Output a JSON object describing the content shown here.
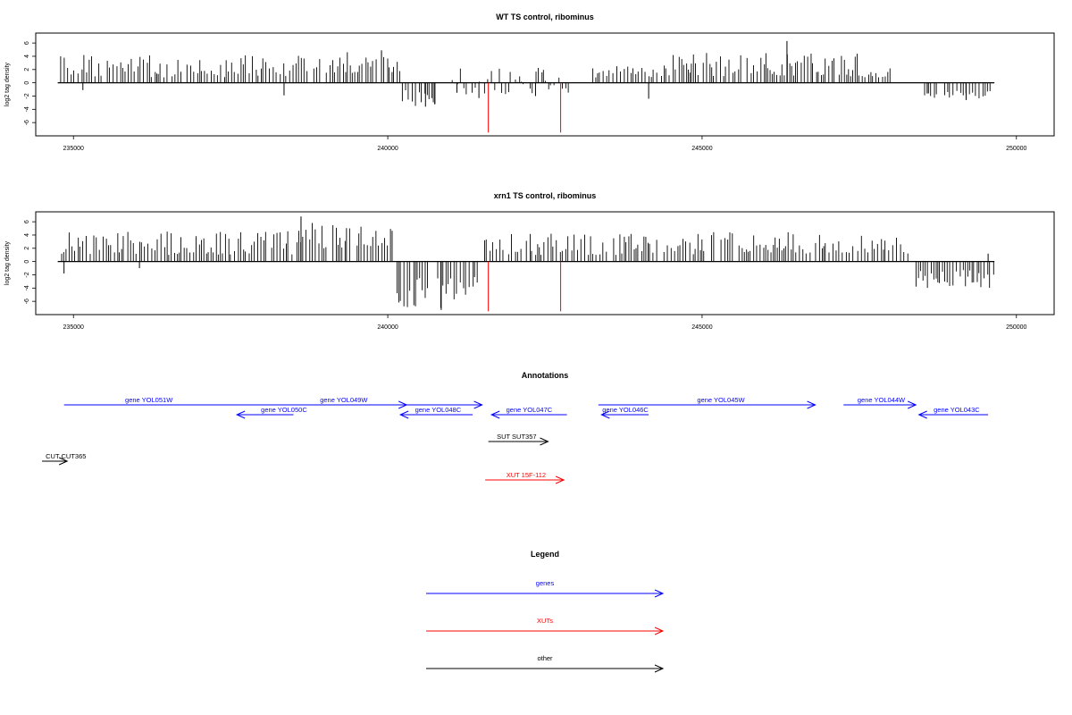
{
  "chart_data": [
    {
      "type": "bar",
      "title": "WT TS control, ribominus",
      "xlabel": "",
      "ylabel": "log2 tag density",
      "xlim": [
        234400,
        250600
      ],
      "ylim": [
        -8,
        7.5
      ],
      "xticks": [
        235000,
        240000,
        245000,
        250000
      ],
      "yticks": [
        6,
        4,
        2,
        0,
        -2,
        -4,
        -6
      ],
      "bar_color": "#000000",
      "marker_color": "#ff0000",
      "markers": [
        {
          "x": 241600,
          "y": -7.5
        },
        {
          "x": 242750,
          "y": -7.5
        }
      ],
      "regions": [
        {
          "from": 234750,
          "to": 238400,
          "min": 0.8,
          "max": 4.2,
          "seed": 1
        },
        {
          "from": 238400,
          "to": 240200,
          "min": 1.5,
          "max": 5.0,
          "seed": 2
        },
        {
          "from": 240200,
          "to": 240800,
          "min": -3.5,
          "max": -1.0,
          "seed": 3
        },
        {
          "from": 241000,
          "to": 242900,
          "min": -1.8,
          "max": 2.5,
          "seed": 4
        },
        {
          "from": 243200,
          "to": 244300,
          "min": 0.8,
          "max": 2.6,
          "seed": 5
        },
        {
          "from": 244300,
          "to": 247500,
          "min": 1.0,
          "max": 4.5,
          "seed": 6
        },
        {
          "from": 247500,
          "to": 248000,
          "min": 0.8,
          "max": 2.2,
          "seed": 7
        },
        {
          "from": 248500,
          "to": 249600,
          "min": -2.5,
          "max": -0.8,
          "seed": 8
        }
      ],
      "bars": [
        {
          "x": 235150,
          "y": -1.1
        },
        {
          "x": 238350,
          "y": -1.9
        },
        {
          "x": 240600,
          "y": -3.6
        },
        {
          "x": 240750,
          "y": -3.2
        },
        {
          "x": 241100,
          "y": -1.5
        },
        {
          "x": 241450,
          "y": -2.3
        },
        {
          "x": 242350,
          "y": -2.0
        },
        {
          "x": 244150,
          "y": -2.4
        },
        {
          "x": 246350,
          "y": 6.3
        },
        {
          "x": 239900,
          "y": 4.9
        },
        {
          "x": 249200,
          "y": -2.6
        },
        {
          "x": 248600,
          "y": -1.6
        }
      ]
    },
    {
      "type": "bar",
      "title": "xrn1 TS control, ribominus",
      "xlabel": "",
      "ylabel": "log2 tag density",
      "xlim": [
        234400,
        250600
      ],
      "ylim": [
        -8,
        7.5
      ],
      "xticks": [
        235000,
        240000,
        245000,
        250000
      ],
      "yticks": [
        6,
        4,
        2,
        0,
        -2,
        -4,
        -6
      ],
      "bar_color": "#000000",
      "marker_color": "#ff0000",
      "markers": [
        {
          "x": 241600,
          "y": -7.5
        },
        {
          "x": 242750,
          "y": -7.5
        }
      ],
      "regions": [
        {
          "from": 234750,
          "to": 238500,
          "min": 1.0,
          "max": 4.6,
          "seed": 11
        },
        {
          "from": 238500,
          "to": 240100,
          "min": 2.0,
          "max": 6.0,
          "seed": 12
        },
        {
          "from": 240100,
          "to": 241450,
          "min": -7.0,
          "max": -2.0,
          "seed": 13
        },
        {
          "from": 241500,
          "to": 243100,
          "min": 1.0,
          "max": 4.2,
          "seed": 14
        },
        {
          "from": 243100,
          "to": 245000,
          "min": 1.0,
          "max": 4.2,
          "seed": 15
        },
        {
          "from": 245000,
          "to": 248300,
          "min": 1.2,
          "max": 4.8,
          "seed": 16
        },
        {
          "from": 248300,
          "to": 249650,
          "min": -4.0,
          "max": -1.2,
          "seed": 17
        }
      ],
      "bars": [
        {
          "x": 234850,
          "y": -1.8
        },
        {
          "x": 236050,
          "y": -1.0
        },
        {
          "x": 240850,
          "y": -7.3
        },
        {
          "x": 238620,
          "y": 6.8
        },
        {
          "x": 249550,
          "y": 1.2
        }
      ]
    }
  ],
  "annotations": {
    "title": "Annotations",
    "items": [
      {
        "label": "gene YOL051W",
        "from": 234850,
        "to": 241500,
        "row": 0,
        "color": "#0000ff",
        "dir": "right",
        "text_x": 236200
      },
      {
        "label": "gene YOL050C",
        "from": 237600,
        "to": 238500,
        "row": 1,
        "color": "#0000ff",
        "dir": "left",
        "text_x": 238350
      },
      {
        "label": "gene YOL049W",
        "from": 238500,
        "to": 240300,
        "row": 0,
        "color": "#0000ff",
        "dir": "right",
        "text_x": 239300
      },
      {
        "label": "gene YOL048C",
        "from": 240200,
        "to": 241350,
        "row": 1,
        "color": "#0000ff",
        "dir": "left",
        "text_x": 240800
      },
      {
        "label": "gene YOL047C",
        "from": 241650,
        "to": 242850,
        "row": 1,
        "color": "#0000ff",
        "dir": "left",
        "text_x": 242250
      },
      {
        "label": "gene YOL046C",
        "from": 243400,
        "to": 244150,
        "row": 1,
        "color": "#0000ff",
        "dir": "left",
        "text_x": 243780
      },
      {
        "label": "gene YOL045W",
        "from": 243350,
        "to": 246800,
        "row": 0,
        "color": "#0000ff",
        "dir": "right",
        "text_x": 245300
      },
      {
        "label": "gene YOL044W",
        "from": 247250,
        "to": 248400,
        "row": 0,
        "color": "#0000ff",
        "dir": "right",
        "text_x": 247850
      },
      {
        "label": "gene YOL043C",
        "from": 248450,
        "to": 249550,
        "row": 1,
        "color": "#0000ff",
        "dir": "left",
        "text_x": 249050
      },
      {
        "label": "SUT SUT357",
        "from": 241600,
        "to": 242550,
        "row": 2,
        "color": "#000000",
        "dir": "right",
        "text_x": 242050
      },
      {
        "label": "CUT CUT365",
        "from": 234500,
        "to": 234900,
        "row": 3,
        "color": "#000000",
        "dir": "right",
        "text_x": 234880
      },
      {
        "label": "XUT 15F-112",
        "from": 241550,
        "to": 242800,
        "row": 4,
        "color": "#ff0000",
        "dir": "right",
        "text_x": 242200
      }
    ]
  },
  "legend": {
    "title": "Legend",
    "items": [
      {
        "label": "genes",
        "color": "#0000ff"
      },
      {
        "label": "XUTs",
        "color": "#ff0000"
      },
      {
        "label": "other",
        "color": "#000000"
      }
    ]
  }
}
